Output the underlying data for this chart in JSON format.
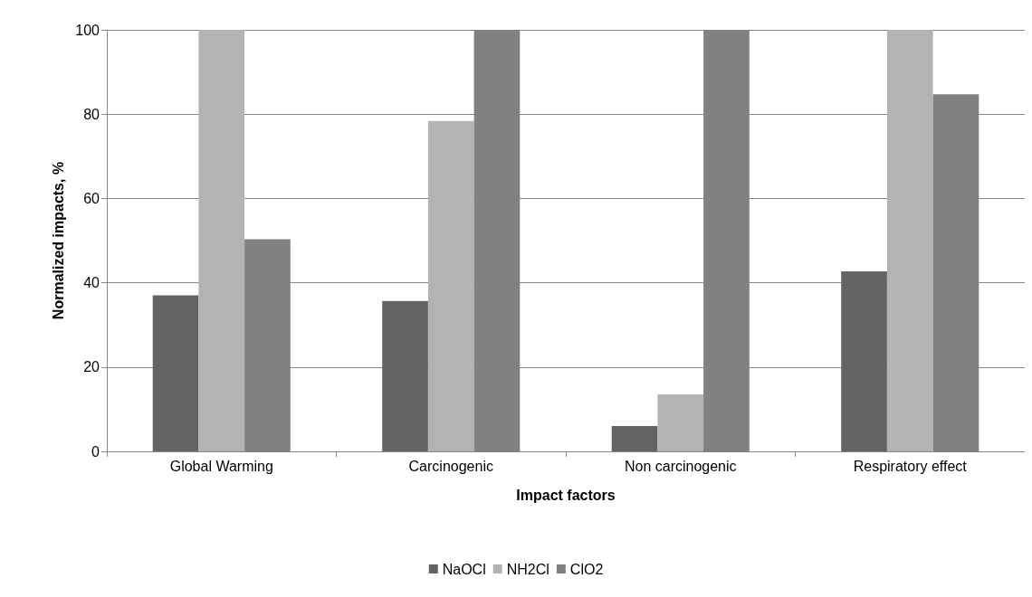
{
  "chart_data": {
    "type": "bar",
    "xlabel": "Impact factors",
    "ylabel": "Normalized impacts, %",
    "categories": [
      "Global Warming",
      "Carcinogenic",
      "Non carcinogenic",
      "Respiratory effect"
    ],
    "series": [
      {
        "name": "NaOCl",
        "color": "#636363",
        "values": [
          37,
          35.7,
          6,
          42.7
        ]
      },
      {
        "name": "NH2Cl",
        "color": "#b3b3b3",
        "values": [
          100,
          78.4,
          13.5,
          100
        ]
      },
      {
        "name": "ClO2",
        "color": "#818181",
        "values": [
          50.3,
          100,
          100,
          84.7
        ]
      }
    ],
    "ylim": [
      0,
      100
    ],
    "yticks": [
      0,
      20,
      40,
      60,
      80,
      100
    ],
    "grid": "y",
    "legend": "bottom"
  }
}
